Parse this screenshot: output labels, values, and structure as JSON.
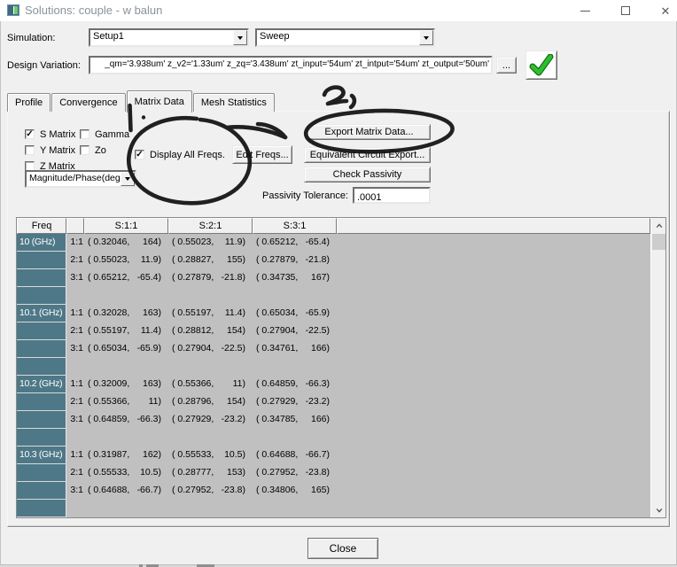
{
  "window": {
    "title": "Solutions: couple - w balun"
  },
  "simulation": {
    "label": "Simulation:",
    "setup_value": "Setup1",
    "sweep_value": "Sweep"
  },
  "design_variation": {
    "label": "Design Variation:",
    "value": "_qm='3.938um' z_v2='1.33um' z_zq='3.438um' zt_input='54um' zt_intput='54um' zt_output='50um'",
    "browse": "..."
  },
  "tabs": {
    "items": [
      {
        "label": "Profile"
      },
      {
        "label": "Convergence"
      },
      {
        "label": "Matrix Data"
      },
      {
        "label": "Mesh Statistics"
      }
    ],
    "active": "Matrix Data"
  },
  "controls": {
    "matrix_types": [
      {
        "label": "S Matrix",
        "checked": true
      },
      {
        "label": "Gamma",
        "checked": false
      },
      {
        "label": "Y Matrix",
        "checked": false
      },
      {
        "label": "Zo",
        "checked": false
      },
      {
        "label": "Z Matrix",
        "checked": false
      }
    ],
    "display_all_freqs": {
      "label": "Display All Freqs.",
      "checked": true
    },
    "edit_freqs": "Edit Freqs...",
    "format_value": "Magnitude/Phase(deg",
    "export_matrix": "Export Matrix Data...",
    "equivalent_circuit": "Equivalent Circuit Export...",
    "check_passivity": "Check Passivity",
    "passivity_tolerance": {
      "label": "Passivity Tolerance:",
      "value": ".0001"
    }
  },
  "table": {
    "headers": [
      "Freq",
      "",
      "S:1:1",
      "S:2:1",
      "S:3:1"
    ],
    "groups": [
      {
        "freq": "10 (GHz)",
        "rows": [
          {
            "label": "1:1",
            "cells": [
              [
                "0.32046",
                "164"
              ],
              [
                "0.55023",
                "11.9"
              ],
              [
                "0.65212",
                "-65.4"
              ]
            ]
          },
          {
            "label": "2:1",
            "cells": [
              [
                "0.55023",
                "11.9"
              ],
              [
                "0.28827",
                "155"
              ],
              [
                "0.27879",
                "-21.8"
              ]
            ]
          },
          {
            "label": "3:1",
            "cells": [
              [
                "0.65212",
                "-65.4"
              ],
              [
                "0.27879",
                "-21.8"
              ],
              [
                "0.34735",
                "167"
              ]
            ]
          }
        ]
      },
      {
        "freq": "10.1 (GHz)",
        "rows": [
          {
            "label": "1:1",
            "cells": [
              [
                "0.32028",
                "163"
              ],
              [
                "0.55197",
                "11.4"
              ],
              [
                "0.65034",
                "-65.9"
              ]
            ]
          },
          {
            "label": "2:1",
            "cells": [
              [
                "0.55197",
                "11.4"
              ],
              [
                "0.28812",
                "154"
              ],
              [
                "0.27904",
                "-22.5"
              ]
            ]
          },
          {
            "label": "3:1",
            "cells": [
              [
                "0.65034",
                "-65.9"
              ],
              [
                "0.27904",
                "-22.5"
              ],
              [
                "0.34761",
                "166"
              ]
            ]
          }
        ]
      },
      {
        "freq": "10.2 (GHz)",
        "rows": [
          {
            "label": "1:1",
            "cells": [
              [
                "0.32009",
                "163"
              ],
              [
                "0.55366",
                "11"
              ],
              [
                "0.64859",
                "-66.3"
              ]
            ]
          },
          {
            "label": "2:1",
            "cells": [
              [
                "0.55366",
                "11"
              ],
              [
                "0.28796",
                "154"
              ],
              [
                "0.27929",
                "-23.2"
              ]
            ]
          },
          {
            "label": "3:1",
            "cells": [
              [
                "0.64859",
                "-66.3"
              ],
              [
                "0.27929",
                "-23.2"
              ],
              [
                "0.34785",
                "166"
              ]
            ]
          }
        ]
      },
      {
        "freq": "10.3 (GHz)",
        "rows": [
          {
            "label": "1:1",
            "cells": [
              [
                "0.31987",
                "162"
              ],
              [
                "0.55533",
                "10.5"
              ],
              [
                "0.64688",
                "-66.7"
              ]
            ]
          },
          {
            "label": "2:1",
            "cells": [
              [
                "0.55533",
                "10.5"
              ],
              [
                "0.28777",
                "153"
              ],
              [
                "0.27952",
                "-23.8"
              ]
            ]
          },
          {
            "label": "3:1",
            "cells": [
              [
                "0.64688",
                "-66.7"
              ],
              [
                "0.27952",
                "-23.8"
              ],
              [
                "0.34806",
                "165"
              ]
            ]
          }
        ]
      }
    ]
  },
  "footer": {
    "close": "Close"
  },
  "annotations": {
    "mark_1": "1.",
    "mark_2": "2,",
    "circled": [
      "Display All Freqs.",
      "Export Matrix Data..."
    ]
  },
  "colors": {
    "freq_cell": "#4e7887",
    "table_bg": "#c0c0c0",
    "check_green": "#2dbf2d",
    "annotation": "#111111"
  }
}
